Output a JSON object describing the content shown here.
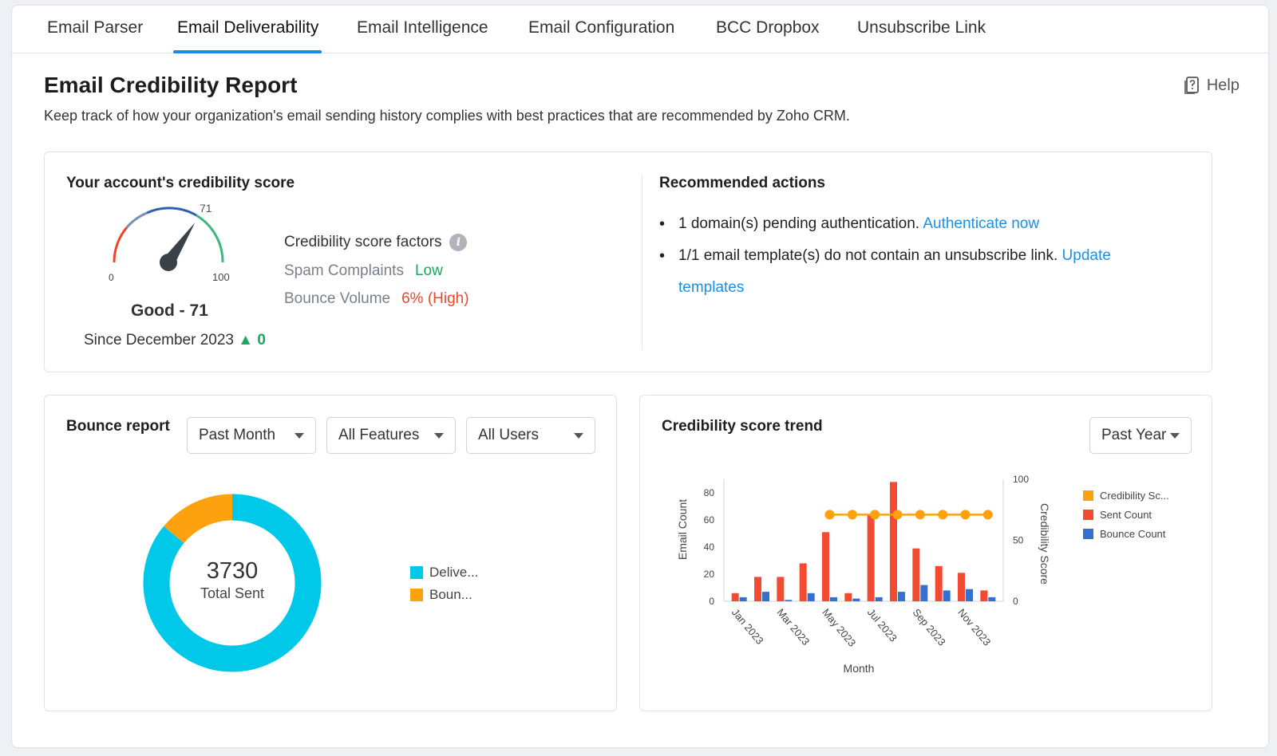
{
  "tabs": [
    {
      "label": "Email Parser",
      "active": false
    },
    {
      "label": "Email Deliverability",
      "active": true
    },
    {
      "label": "Email Intelligence",
      "active": false
    },
    {
      "label": "Email Configuration",
      "active": false
    },
    {
      "label": "BCC Dropbox",
      "active": false
    },
    {
      "label": "Unsubscribe Link",
      "active": false
    }
  ],
  "header": {
    "title": "Email Credibility Report",
    "subtitle": "Keep track of how your organization's email sending history complies with best practices that are recommended by Zoho CRM.",
    "help_label": "Help"
  },
  "credibility": {
    "title": "Your account's credibility score",
    "gauge": {
      "value": 71,
      "min": 0,
      "max": 100,
      "value_label": "71",
      "min_label": "0",
      "max_label": "100"
    },
    "score_text": "Good - 71",
    "since_text": "Since December 2023",
    "delta": "0",
    "factors_title": "Credibility score factors",
    "factors": [
      {
        "label": "Spam Complaints",
        "value": "Low",
        "level": "low"
      },
      {
        "label": "Bounce Volume",
        "value": "6% (High)",
        "level": "high"
      }
    ]
  },
  "recommended": {
    "title": "Recommended actions",
    "items": [
      {
        "text": "1 domain(s) pending authentication.",
        "link": "Authenticate now"
      },
      {
        "text": "1/1 email template(s) do not contain an unsubscribe link.",
        "link": "Update templates"
      }
    ]
  },
  "bounce_report": {
    "title": "Bounce report",
    "filters": {
      "period": "Past Month",
      "features": "All Features",
      "users": "All Users"
    },
    "total": "3730",
    "total_label": "Total Sent",
    "legend": [
      {
        "label": "Delive...",
        "color": "#00c8e8"
      },
      {
        "label": "Boun...",
        "color": "#fda10f"
      }
    ]
  },
  "trend": {
    "title": "Credibility score trend",
    "period": "Past Year",
    "legend": [
      {
        "label": "Credibility Sc...",
        "color": "#fda10f"
      },
      {
        "label": "Sent Count",
        "color": "#f44a32"
      },
      {
        "label": "Bounce Count",
        "color": "#3470cf"
      }
    ]
  },
  "chart_data": [
    {
      "type": "pie",
      "variant": "donut",
      "categories": [
        "Delive...",
        "Boun..."
      ],
      "values": [
        0.86,
        0.14
      ],
      "center_value": "3730",
      "center_label": "Total Sent",
      "colors": [
        "#00c8e8",
        "#fda10f"
      ]
    },
    {
      "type": "bar",
      "x": [
        "Jan 2023",
        "Feb 2023",
        "Mar 2023",
        "Apr 2023",
        "May 2023",
        "Jun 2023",
        "Jul 2023",
        "Aug 2023",
        "Sep 2023",
        "Oct 2023",
        "Nov 2023",
        "Dec 2023"
      ],
      "tick_labels": [
        "Jan 2023",
        "Mar 2023",
        "May 2023",
        "Jul 2023",
        "Sep 2023",
        "Nov 2023"
      ],
      "series": [
        {
          "name": "Sent Count",
          "type": "bar",
          "axis": "left",
          "color": "#f44a32",
          "values": [
            6,
            18,
            18,
            28,
            51,
            6,
            64,
            88,
            39,
            26,
            21,
            8
          ]
        },
        {
          "name": "Bounce Count",
          "type": "bar",
          "axis": "left",
          "color": "#3470cf",
          "values": [
            3,
            7,
            1,
            6,
            3,
            2,
            3,
            7,
            12,
            8,
            9,
            3
          ]
        },
        {
          "name": "Credibility Score",
          "type": "line",
          "axis": "right",
          "color": "#fda10f",
          "values": [
            null,
            null,
            null,
            null,
            71,
            71,
            71,
            71,
            71,
            71,
            71,
            71
          ]
        }
      ],
      "xlabel": "Month",
      "ylabel": "Email Count",
      "y2label": "Credibility Score",
      "ylim": [
        0,
        90
      ],
      "yticks": [
        0,
        20,
        40,
        60,
        80
      ],
      "y2lim": [
        0,
        100
      ],
      "y2ticks": [
        0,
        50,
        100
      ],
      "legend_position": "right"
    }
  ]
}
